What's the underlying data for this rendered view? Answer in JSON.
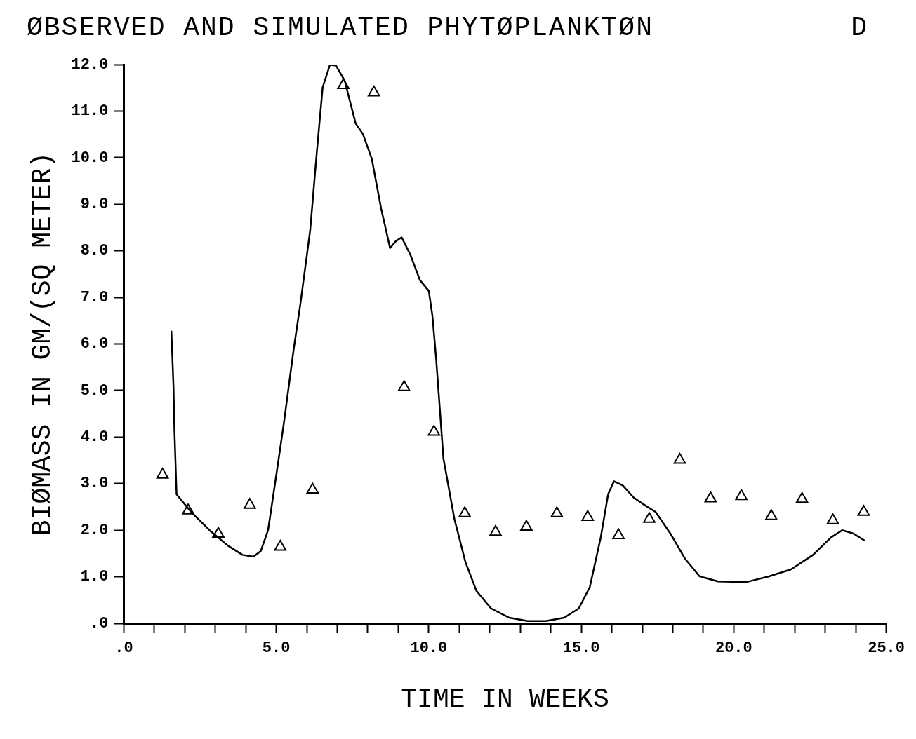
{
  "chart_data": {
    "type": "scatter",
    "title": "ØBSERVED AND SIMULATED PHYTØPLANKTØN",
    "annotations": [
      "D"
    ],
    "xlabel": "TIME IN WEEKS",
    "ylabel": "BIØMASS IN GM/(SQ METER)",
    "xlim": [
      0,
      25
    ],
    "ylim": [
      0,
      12
    ],
    "xticks": [
      {
        "value": 0,
        "label": ".0"
      },
      {
        "value": 1,
        "label": null
      },
      {
        "value": 2,
        "label": null
      },
      {
        "value": 3,
        "label": null
      },
      {
        "value": 4,
        "label": null
      },
      {
        "value": 5,
        "label": "5.0"
      },
      {
        "value": 6,
        "label": null
      },
      {
        "value": 7,
        "label": null
      },
      {
        "value": 8,
        "label": null
      },
      {
        "value": 9,
        "label": null
      },
      {
        "value": 10,
        "label": "10.0"
      },
      {
        "value": 11,
        "label": null
      },
      {
        "value": 12,
        "label": null
      },
      {
        "value": 13,
        "label": null
      },
      {
        "value": 14,
        "label": null
      },
      {
        "value": 15,
        "label": "15.0"
      },
      {
        "value": 16,
        "label": null
      },
      {
        "value": 17,
        "label": null
      },
      {
        "value": 18,
        "label": null
      },
      {
        "value": 19,
        "label": null
      },
      {
        "value": 20,
        "label": "20.0"
      },
      {
        "value": 21,
        "label": null
      },
      {
        "value": 22,
        "label": null
      },
      {
        "value": 23,
        "label": null
      },
      {
        "value": 24,
        "label": null
      },
      {
        "value": 25,
        "label": "25.0"
      }
    ],
    "yticks": [
      {
        "value": 0,
        "label": ".0"
      },
      {
        "value": 1,
        "label": "1.0"
      },
      {
        "value": 2,
        "label": "2.0"
      },
      {
        "value": 3,
        "label": "3.0"
      },
      {
        "value": 4,
        "label": "4.0"
      },
      {
        "value": 5,
        "label": "5.0"
      },
      {
        "value": 6,
        "label": "6.0"
      },
      {
        "value": 7,
        "label": "7.0"
      },
      {
        "value": 8,
        "label": "8.0"
      },
      {
        "value": 9,
        "label": "9.0"
      },
      {
        "value": 10,
        "label": "10.0"
      },
      {
        "value": 11,
        "label": "11.0"
      },
      {
        "value": 12,
        "label": "12.0"
      }
    ],
    "legend": false,
    "series": [
      {
        "type": "scatter",
        "marker": "triangle",
        "color": "#000000",
        "x": [
          1.27,
          2.11,
          3.1,
          4.13,
          5.13,
          6.19,
          7.2,
          8.2,
          9.19,
          10.17,
          11.18,
          12.19,
          13.2,
          14.2,
          15.21,
          16.22,
          17.23,
          18.23,
          19.24,
          20.25,
          21.23,
          22.24,
          23.25,
          24.26
        ],
        "values": [
          3.19,
          2.42,
          1.92,
          2.54,
          1.64,
          2.87,
          11.56,
          11.4,
          5.07,
          4.11,
          2.36,
          1.96,
          2.07,
          2.36,
          2.28,
          1.89,
          2.24,
          3.51,
          2.68,
          2.73,
          2.3,
          2.67,
          2.21,
          2.39
        ]
      },
      {
        "type": "line",
        "marker": "none",
        "color": "#000000",
        "x": [
          1.56,
          1.63,
          1.66,
          1.73,
          2.21,
          2.81,
          3.41,
          3.89,
          4.25,
          4.49,
          4.73,
          5.01,
          5.25,
          5.56,
          5.8,
          6.11,
          6.33,
          6.52,
          6.76,
          6.96,
          7.24,
          7.6,
          7.84,
          8.13,
          8.44,
          8.73,
          8.92,
          9.11,
          9.4,
          9.71,
          10.0,
          10.12,
          10.24,
          10.48,
          10.84,
          11.2,
          11.56,
          12.04,
          12.64,
          13.24,
          13.84,
          14.44,
          14.92,
          15.28,
          15.64,
          15.88,
          16.07,
          16.36,
          16.72,
          17.08,
          17.44,
          17.92,
          18.4,
          18.88,
          19.48,
          20.2,
          20.44,
          21.16,
          21.88,
          22.6,
          23.2,
          23.56,
          23.92,
          24.28
        ],
        "values": [
          6.27,
          5.07,
          4.15,
          2.77,
          2.39,
          2.0,
          1.67,
          1.47,
          1.43,
          1.55,
          2.0,
          3.23,
          4.31,
          5.84,
          6.91,
          8.44,
          10.13,
          11.51,
          12.0,
          11.98,
          11.66,
          10.74,
          10.51,
          9.98,
          8.9,
          8.06,
          8.21,
          8.29,
          7.91,
          7.37,
          7.14,
          6.6,
          5.69,
          3.54,
          2.24,
          1.32,
          0.7,
          0.32,
          0.12,
          0.05,
          0.05,
          0.12,
          0.32,
          0.78,
          1.85,
          2.77,
          3.05,
          2.96,
          2.7,
          2.54,
          2.39,
          1.93,
          1.39,
          1.01,
          0.9,
          0.89,
          0.89,
          1.01,
          1.16,
          1.47,
          1.85,
          2.0,
          1.93,
          1.78
        ]
      }
    ]
  }
}
